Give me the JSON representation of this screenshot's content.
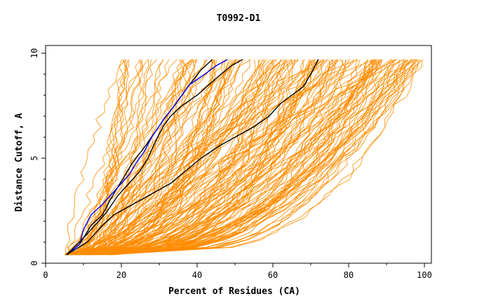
{
  "chart_data": {
    "type": "line",
    "title": "T0992-D1",
    "xlabel": "Percent of Residues (CA)",
    "ylabel": "Distance Cutoff, A",
    "xlim": [
      0,
      100
    ],
    "ylim": [
      0,
      10
    ],
    "x_ticks": [
      "0",
      "20",
      "40",
      "60",
      "80",
      "100"
    ],
    "y_ticks": [
      "0",
      "5",
      "10"
    ],
    "grid": false,
    "legend": "none",
    "colors": {
      "background_curves": "#ff8c00",
      "highlight_black": "#000000",
      "highlight_blue": "#0000ff"
    },
    "background_curve_count": 180,
    "highlighted_series": [
      {
        "color": "#000000",
        "points": [
          [
            5.5,
            0.4
          ],
          [
            9,
            0.9
          ],
          [
            12,
            1.8
          ],
          [
            15,
            2.3
          ],
          [
            17,
            3.0
          ],
          [
            19,
            3.6
          ],
          [
            21,
            4.2
          ],
          [
            23,
            4.8
          ],
          [
            26,
            5.5
          ],
          [
            28,
            6.0
          ],
          [
            31,
            6.8
          ],
          [
            34,
            7.5
          ],
          [
            38,
            8.5
          ],
          [
            41,
            9.2
          ],
          [
            44,
            9.7
          ]
        ]
      },
      {
        "color": "#0000ff",
        "points": [
          [
            5.5,
            0.4
          ],
          [
            9,
            0.9
          ],
          [
            10,
            1.6
          ],
          [
            12,
            2.3
          ],
          [
            15,
            2.8
          ],
          [
            17,
            3.2
          ],
          [
            19,
            3.6
          ],
          [
            22,
            4.2
          ],
          [
            24,
            4.8
          ],
          [
            26,
            5.3
          ],
          [
            28,
            6.0
          ],
          [
            31,
            6.8
          ],
          [
            34,
            7.5
          ],
          [
            38,
            8.5
          ],
          [
            42,
            9.0
          ],
          [
            45,
            9.4
          ],
          [
            48,
            9.7
          ]
        ]
      },
      {
        "color": "#000000",
        "points": [
          [
            5.5,
            0.4
          ],
          [
            10,
            1.2
          ],
          [
            13,
            1.8
          ],
          [
            16,
            2.4
          ],
          [
            19,
            3.2
          ],
          [
            22,
            3.8
          ],
          [
            25,
            4.4
          ],
          [
            27,
            5.0
          ],
          [
            29,
            5.8
          ],
          [
            31,
            6.5
          ],
          [
            33,
            7.0
          ],
          [
            36,
            7.5
          ],
          [
            40,
            8.0
          ],
          [
            45,
            8.8
          ],
          [
            49,
            9.4
          ],
          [
            52,
            9.7
          ]
        ]
      },
      {
        "color": "#000000",
        "points": [
          [
            5.5,
            0.4
          ],
          [
            11,
            1.0
          ],
          [
            15,
            1.8
          ],
          [
            18,
            2.3
          ],
          [
            23,
            2.8
          ],
          [
            28,
            3.3
          ],
          [
            33,
            3.8
          ],
          [
            37,
            4.4
          ],
          [
            41,
            5.0
          ],
          [
            46,
            5.6
          ],
          [
            51,
            6.1
          ],
          [
            55,
            6.5
          ],
          [
            59,
            7.0
          ],
          [
            62,
            7.6
          ],
          [
            65,
            8.0
          ],
          [
            68,
            8.4
          ],
          [
            70,
            9.0
          ],
          [
            72,
            9.7
          ]
        ]
      }
    ]
  }
}
